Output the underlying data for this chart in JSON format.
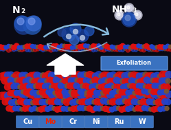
{
  "bg_color": "#0a0a14",
  "exfoliation_label": "Exfoliation",
  "elements": [
    "Cu",
    "Mo",
    "Cr",
    "Ni",
    "Ru",
    "W"
  ],
  "element_colors_text": [
    "white",
    "#ee2200",
    "white",
    "white",
    "white",
    "white"
  ],
  "element_box_color": "#3a72c0",
  "atom_red": "#dd1111",
  "atom_red2": "#ff3333",
  "atom_blue": "#2244cc",
  "atom_blue2": "#4466ee",
  "atom_brown": "#7a5533",
  "atom_white": "#ddddee",
  "n2_color1": "#2255bb",
  "n2_color2": "#4488dd",
  "nh3_n_color": "#3366cc",
  "nh3_h_color": "#ddddee"
}
